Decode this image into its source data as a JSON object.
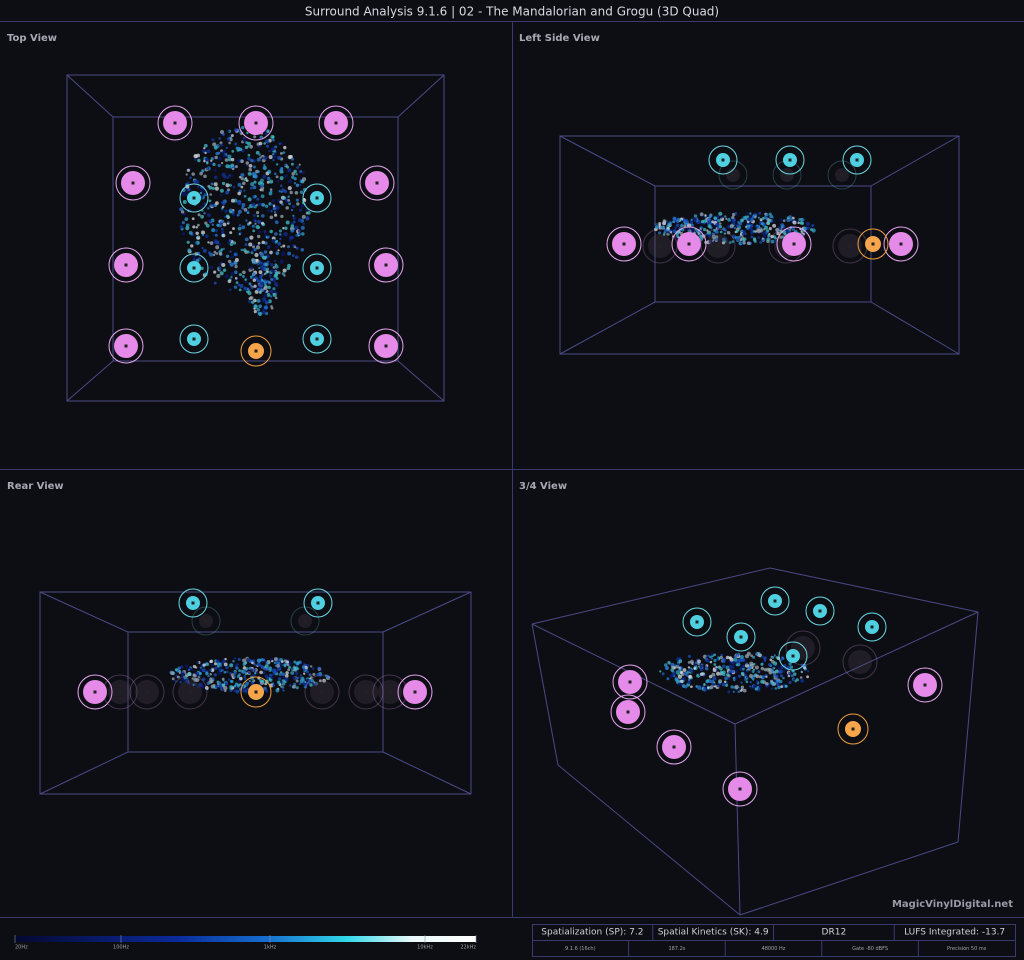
{
  "header": {
    "title": "Surround Analysis 9.1.6 | 02 - The Mandalorian and Grogu (3D Quad)"
  },
  "panels": [
    {
      "title": "Top View"
    },
    {
      "title": "Left Side View"
    },
    {
      "title": "Rear View"
    },
    {
      "title": "3/4 View"
    }
  ],
  "watermark": "MagicVinylDigital.net",
  "colorbar": {
    "labels": [
      "20Hz",
      "100Hz",
      "1kHz",
      "10kHz",
      "22kHz"
    ]
  },
  "stats": {
    "rows": [
      [
        "Spatialization (SP): 7.2",
        "Spatial Kinetics (SK): 4.9",
        "DR12",
        "LUFS Integrated: -13.7"
      ],
      [
        "9.1.6 (16ch)",
        "187.2s",
        "48000 Hz",
        "Gate -80 dBFS",
        "Precision 50 ms"
      ]
    ]
  }
}
